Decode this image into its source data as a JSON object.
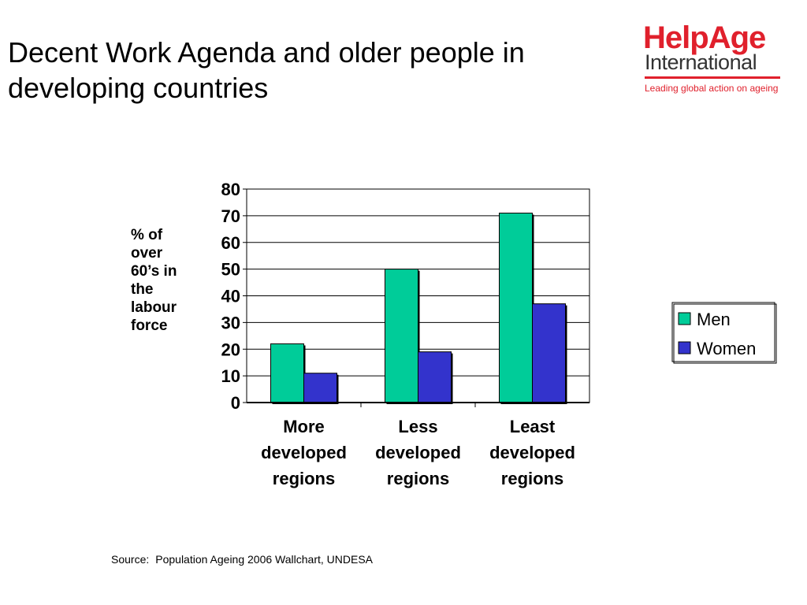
{
  "slide": {
    "title": "Decent Work Agenda and older people in developing countries",
    "source_label": "Source:",
    "source_text": "Population Ageing 2006 Wallchart, UNDESA"
  },
  "logo": {
    "brand_part1": "Help",
    "brand_part2": "Age",
    "brand_sub": "International",
    "tagline": "Leading global action on ageing",
    "red": "#e0202c",
    "text_dark": "#333333"
  },
  "colors": {
    "men": "#00cc99",
    "women": "#3333cc",
    "axis": "#000000",
    "grid": "#000000"
  },
  "chart_data": {
    "type": "bar",
    "title": "",
    "xlabel": "",
    "ylabel": "% of over 60’s in the labour force",
    "ylim": [
      0,
      80
    ],
    "yticks": [
      0,
      10,
      20,
      30,
      40,
      50,
      60,
      70,
      80
    ],
    "grid": true,
    "legend_position": "right",
    "categories": [
      [
        "More",
        "developed",
        "regions"
      ],
      [
        "Less",
        "developed",
        "regions"
      ],
      [
        "Least",
        "developed",
        "regions"
      ]
    ],
    "series": [
      {
        "name": "Men",
        "values": [
          22,
          50,
          71
        ]
      },
      {
        "name": "Women",
        "values": [
          11,
          19,
          37
        ]
      }
    ]
  }
}
